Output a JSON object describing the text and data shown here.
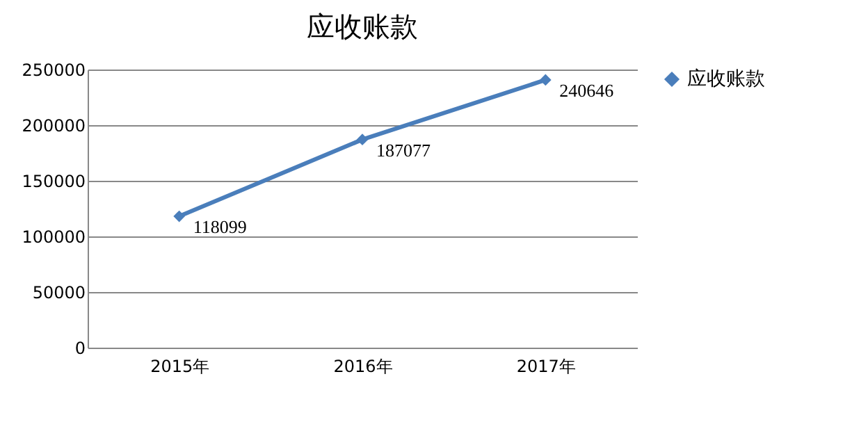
{
  "chart_data": {
    "type": "line",
    "title": "应收账款",
    "categories": [
      "2015年",
      "2016年",
      "2017年"
    ],
    "series": [
      {
        "name": "应收账款",
        "color": "#4a7ebb",
        "values": [
          118099,
          187077,
          240646
        ]
      }
    ],
    "ylim": [
      0,
      250000
    ],
    "yticks": [
      0,
      50000,
      100000,
      150000,
      200000,
      250000
    ],
    "grid": "y",
    "legend": "right",
    "marker": "diamond",
    "line_style": "solid",
    "data_labels": true
  }
}
